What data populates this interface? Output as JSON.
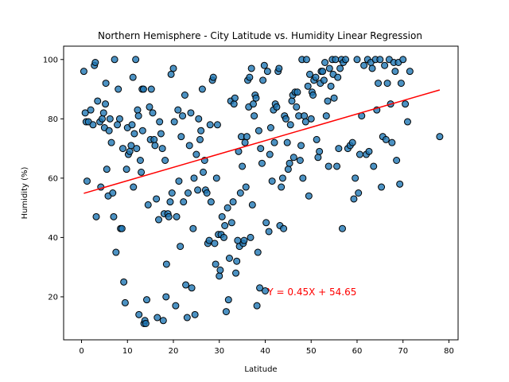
{
  "chart_data": {
    "type": "scatter",
    "title": "Northern Hemisphere - City Latitude vs. Humidity Linear Regression",
    "xlabel": "Latitude",
    "ylabel": "Humidity (%)",
    "xlim": [
      -3.9,
      82
    ],
    "ylim": [
      5.5,
      104.5
    ],
    "xticks": [
      0,
      10,
      20,
      30,
      40,
      50,
      60,
      70,
      80
    ],
    "yticks": [
      20,
      40,
      60,
      80,
      100
    ],
    "grid": false,
    "marker_color": "#1f77b4",
    "marker_edge_color": "#000000",
    "regression": {
      "slope": 0.45,
      "intercept": 54.65,
      "x_range": [
        0.5,
        78
      ],
      "color": "#ff0000",
      "equation": "Y = 0.45X + 54.65",
      "label_x": 40.5,
      "label_y": 20.5
    },
    "series": [
      {
        "points": [
          [
            0.5,
            96
          ],
          [
            0.8,
            82
          ],
          [
            1,
            79
          ],
          [
            1.2,
            59
          ],
          [
            1.5,
            79
          ],
          [
            2,
            83
          ],
          [
            2.5,
            78
          ],
          [
            2.8,
            98
          ],
          [
            3,
            99
          ],
          [
            3.2,
            47
          ],
          [
            3.5,
            86
          ],
          [
            4,
            79
          ],
          [
            4.2,
            57
          ],
          [
            4.5,
            80
          ],
          [
            4.8,
            82
          ],
          [
            5,
            77
          ],
          [
            5.2,
            85
          ],
          [
            5.3,
            92
          ],
          [
            5.5,
            63
          ],
          [
            5.8,
            54
          ],
          [
            6,
            76
          ],
          [
            6.2,
            80
          ],
          [
            6.5,
            72
          ],
          [
            6.8,
            55
          ],
          [
            7,
            47
          ],
          [
            7.2,
            100
          ],
          [
            7.5,
            35
          ],
          [
            7.8,
            78
          ],
          [
            8,
            90
          ],
          [
            8.3,
            80
          ],
          [
            8.5,
            43
          ],
          [
            8.8,
            43
          ],
          [
            9,
            70
          ],
          [
            9.2,
            25
          ],
          [
            9.5,
            18
          ],
          [
            9.8,
            63
          ],
          [
            10,
            77
          ],
          [
            10.2,
            68
          ],
          [
            10.5,
            69
          ],
          [
            10.8,
            71
          ],
          [
            11,
            78
          ],
          [
            11.2,
            94
          ],
          [
            11.3,
            57
          ],
          [
            11.5,
            75
          ],
          [
            11.8,
            100
          ],
          [
            12,
            70
          ],
          [
            12.2,
            83
          ],
          [
            12.4,
            81
          ],
          [
            12.5,
            14
          ],
          [
            12.8,
            66
          ],
          [
            13,
            62
          ],
          [
            13.2,
            90
          ],
          [
            13.3,
            76
          ],
          [
            13.5,
            90
          ],
          [
            13.6,
            11
          ],
          [
            13.8,
            12
          ],
          [
            14,
            11
          ],
          [
            14.2,
            19
          ],
          [
            14.5,
            51
          ],
          [
            14.8,
            84
          ],
          [
            15,
            73
          ],
          [
            15.2,
            90
          ],
          [
            15.5,
            82
          ],
          [
            15.8,
            73
          ],
          [
            16,
            71
          ],
          [
            16.3,
            53
          ],
          [
            16.5,
            13
          ],
          [
            16.8,
            46
          ],
          [
            17,
            79
          ],
          [
            17.3,
            75
          ],
          [
            17.6,
            70
          ],
          [
            17.8,
            12
          ],
          [
            18,
            48
          ],
          [
            18.2,
            66
          ],
          [
            18.4,
            20
          ],
          [
            18.5,
            31
          ],
          [
            18.8,
            48
          ],
          [
            19,
            47
          ],
          [
            19.3,
            52
          ],
          [
            19.5,
            95
          ],
          [
            19.7,
            55
          ],
          [
            20,
            97
          ],
          [
            20.2,
            79
          ],
          [
            20.5,
            17
          ],
          [
            20.7,
            47
          ],
          [
            21,
            83
          ],
          [
            21.2,
            59
          ],
          [
            21.5,
            37
          ],
          [
            21.7,
            74
          ],
          [
            22,
            81
          ],
          [
            22.2,
            52
          ],
          [
            22.5,
            88
          ],
          [
            22.7,
            24
          ],
          [
            23,
            13
          ],
          [
            23.2,
            55
          ],
          [
            23.5,
            71
          ],
          [
            23.8,
            82
          ],
          [
            24,
            23
          ],
          [
            24.3,
            43
          ],
          [
            24.5,
            60
          ],
          [
            24.7,
            14
          ],
          [
            25,
            68
          ],
          [
            25.3,
            56
          ],
          [
            25.5,
            80
          ],
          [
            25.8,
            73
          ],
          [
            26,
            76
          ],
          [
            26.3,
            90
          ],
          [
            26.5,
            62
          ],
          [
            26.8,
            66
          ],
          [
            27,
            56
          ],
          [
            27.3,
            55
          ],
          [
            27.5,
            38
          ],
          [
            27.8,
            39
          ],
          [
            28,
            78
          ],
          [
            28.2,
            52
          ],
          [
            28.5,
            93
          ],
          [
            28.7,
            94
          ],
          [
            29,
            38
          ],
          [
            29.2,
            31
          ],
          [
            29.4,
            60
          ],
          [
            29.6,
            78
          ],
          [
            29.8,
            41
          ],
          [
            30,
            27
          ],
          [
            30.2,
            29
          ],
          [
            30.4,
            41
          ],
          [
            30.6,
            47
          ],
          [
            31,
            40
          ],
          [
            31.2,
            44
          ],
          [
            31.5,
            15
          ],
          [
            31.8,
            50
          ],
          [
            32,
            19
          ],
          [
            32.2,
            33
          ],
          [
            32.5,
            86
          ],
          [
            32.7,
            45
          ],
          [
            33,
            52
          ],
          [
            33.2,
            85
          ],
          [
            33.4,
            87
          ],
          [
            33.6,
            28
          ],
          [
            33.8,
            32
          ],
          [
            34,
            39
          ],
          [
            34.2,
            69
          ],
          [
            34.4,
            37
          ],
          [
            34.6,
            55
          ],
          [
            34.8,
            74
          ],
          [
            35,
            64
          ],
          [
            35.2,
            38
          ],
          [
            35.4,
            39
          ],
          [
            35.6,
            72
          ],
          [
            35.8,
            57
          ],
          [
            36,
            74
          ],
          [
            36.2,
            93
          ],
          [
            36.4,
            84
          ],
          [
            36.6,
            94
          ],
          [
            36.8,
            40
          ],
          [
            37,
            97
          ],
          [
            37.2,
            51
          ],
          [
            37.4,
            85
          ],
          [
            37.6,
            81
          ],
          [
            37.8,
            88
          ],
          [
            38,
            87
          ],
          [
            38.2,
            17
          ],
          [
            38.4,
            35
          ],
          [
            38.6,
            76
          ],
          [
            38.8,
            23
          ],
          [
            39,
            70
          ],
          [
            39.3,
            65
          ],
          [
            39.5,
            93
          ],
          [
            39.8,
            98
          ],
          [
            40,
            22
          ],
          [
            40.2,
            45
          ],
          [
            40.5,
            96
          ],
          [
            40.8,
            42
          ],
          [
            41,
            68
          ],
          [
            41.2,
            77
          ],
          [
            41.5,
            59
          ],
          [
            41.8,
            83
          ],
          [
            42,
            72
          ],
          [
            42.2,
            85
          ],
          [
            42.5,
            84
          ],
          [
            42.8,
            96
          ],
          [
            43,
            97
          ],
          [
            43.2,
            44
          ],
          [
            43.5,
            57
          ],
          [
            43.8,
            60
          ],
          [
            44,
            43
          ],
          [
            44.2,
            81
          ],
          [
            44.5,
            80
          ],
          [
            44.8,
            72
          ],
          [
            45,
            63
          ],
          [
            45.3,
            65
          ],
          [
            45.5,
            78
          ],
          [
            45.8,
            86
          ],
          [
            46,
            88
          ],
          [
            46.2,
            67
          ],
          [
            46.5,
            89
          ],
          [
            46.8,
            84
          ],
          [
            47,
            89
          ],
          [
            47.3,
            81
          ],
          [
            47.6,
            66
          ],
          [
            47.8,
            71
          ],
          [
            48,
            100
          ],
          [
            48.2,
            60
          ],
          [
            48.5,
            81
          ],
          [
            48.8,
            79
          ],
          [
            49,
            100
          ],
          [
            49.3,
            91
          ],
          [
            49.5,
            54
          ],
          [
            49.7,
            95
          ],
          [
            50,
            80
          ],
          [
            50.2,
            89
          ],
          [
            50.4,
            88
          ],
          [
            50.6,
            93
          ],
          [
            51,
            94
          ],
          [
            51.2,
            73
          ],
          [
            51.5,
            67
          ],
          [
            51.8,
            69
          ],
          [
            52,
            92
          ],
          [
            52.2,
            96
          ],
          [
            52.5,
            96
          ],
          [
            52.8,
            93
          ],
          [
            53,
            99
          ],
          [
            53.3,
            81
          ],
          [
            53.6,
            86
          ],
          [
            53.8,
            64
          ],
          [
            54,
            97
          ],
          [
            54.3,
            91
          ],
          [
            54.6,
            100
          ],
          [
            54.8,
            95
          ],
          [
            55,
            87
          ],
          [
            55.3,
            100
          ],
          [
            55.6,
            64
          ],
          [
            55.8,
            94
          ],
          [
            56,
            70
          ],
          [
            56.3,
            97
          ],
          [
            56.6,
            100
          ],
          [
            56.8,
            43
          ],
          [
            57,
            99
          ],
          [
            57.5,
            100
          ],
          [
            58,
            70
          ],
          [
            58.5,
            71
          ],
          [
            59,
            72
          ],
          [
            59.3,
            53
          ],
          [
            59.6,
            60
          ],
          [
            60,
            100
          ],
          [
            60.3,
            55
          ],
          [
            60.6,
            68
          ],
          [
            61,
            81
          ],
          [
            61.5,
            98
          ],
          [
            62,
            68
          ],
          [
            62.3,
            100
          ],
          [
            62.6,
            69
          ],
          [
            63,
            99
          ],
          [
            63.3,
            97
          ],
          [
            63.6,
            64
          ],
          [
            64,
            100
          ],
          [
            64.3,
            83
          ],
          [
            64.6,
            92
          ],
          [
            65,
            100
          ],
          [
            65.3,
            57
          ],
          [
            65.6,
            74
          ],
          [
            66,
            98
          ],
          [
            66.3,
            73
          ],
          [
            66.6,
            92
          ],
          [
            67,
            100
          ],
          [
            67.3,
            85
          ],
          [
            67.6,
            72
          ],
          [
            68,
            99
          ],
          [
            68.3,
            96
          ],
          [
            68.6,
            66
          ],
          [
            69,
            99
          ],
          [
            69.3,
            58
          ],
          [
            69.6,
            92
          ],
          [
            70,
            100
          ],
          [
            70.5,
            85
          ],
          [
            71,
            79
          ],
          [
            71.5,
            96
          ],
          [
            78,
            74
          ]
        ]
      }
    ]
  }
}
